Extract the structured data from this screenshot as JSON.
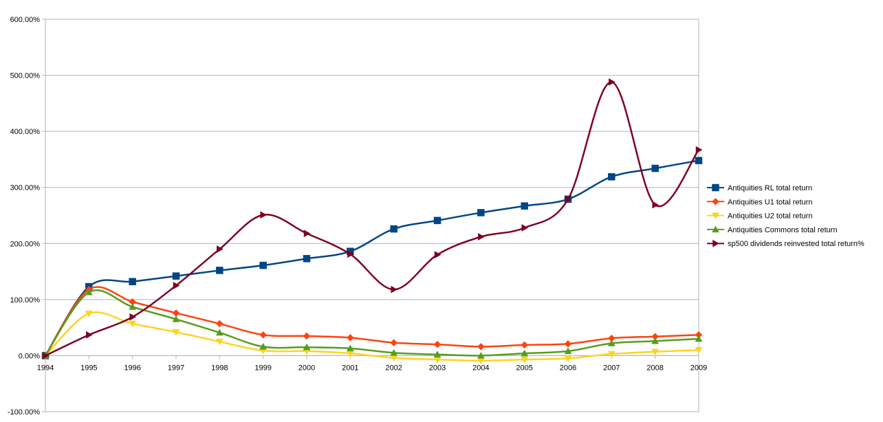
{
  "chart_data": {
    "type": "line",
    "title": "",
    "xlabel": "",
    "ylabel": "",
    "x": [
      "1994",
      "1995",
      "1996",
      "1997",
      "1998",
      "1999",
      "2000",
      "2001",
      "2002",
      "2003",
      "2004",
      "2005",
      "2006",
      "2007",
      "2008",
      "2009"
    ],
    "ylim": [
      -100,
      600
    ],
    "yticks": [
      -100,
      0,
      100,
      200,
      300,
      400,
      500,
      600
    ],
    "ytick_labels": [
      "-100.00%",
      "0.00%",
      "100.00%",
      "200.00%",
      "300.00%",
      "400.00%",
      "500.00%",
      "600.00%"
    ],
    "grid": "horizontal",
    "legend_position": "right",
    "smooth": true,
    "series": [
      {
        "name": "Antiquities RL total return",
        "color": "#004586",
        "marker": "square",
        "values": [
          0,
          123,
          132,
          142,
          152,
          161,
          173,
          186,
          226,
          241,
          255,
          267,
          279,
          319,
          334,
          348
        ]
      },
      {
        "name": "Antiquities U1 total return",
        "color": "#ff420e",
        "marker": "diamond",
        "values": [
          0,
          118,
          96,
          76,
          57,
          37,
          35,
          32,
          23,
          20,
          16,
          19,
          21,
          31,
          34,
          37
        ]
      },
      {
        "name": "Antiquities U2 total return",
        "color": "#ffd320",
        "marker": "triangle-down",
        "values": [
          0,
          75,
          57,
          42,
          25,
          9,
          8,
          4,
          -4,
          -7,
          -9,
          -7,
          -5,
          3,
          7,
          10
        ]
      },
      {
        "name": "Antiquities Commons  total return",
        "color": "#579d1c",
        "marker": "triangle-up",
        "values": [
          0,
          113,
          87,
          65,
          41,
          16,
          15,
          13,
          5,
          2,
          0,
          4,
          8,
          22,
          26,
          30
        ]
      },
      {
        "name": "sp500 dividends reinvested total return%",
        "color": "#7e0021",
        "marker": "triangle-right",
        "values": [
          0,
          37,
          69,
          125,
          190,
          251,
          218,
          181,
          118,
          180,
          212,
          228,
          279,
          488,
          269,
          367
        ]
      }
    ]
  }
}
